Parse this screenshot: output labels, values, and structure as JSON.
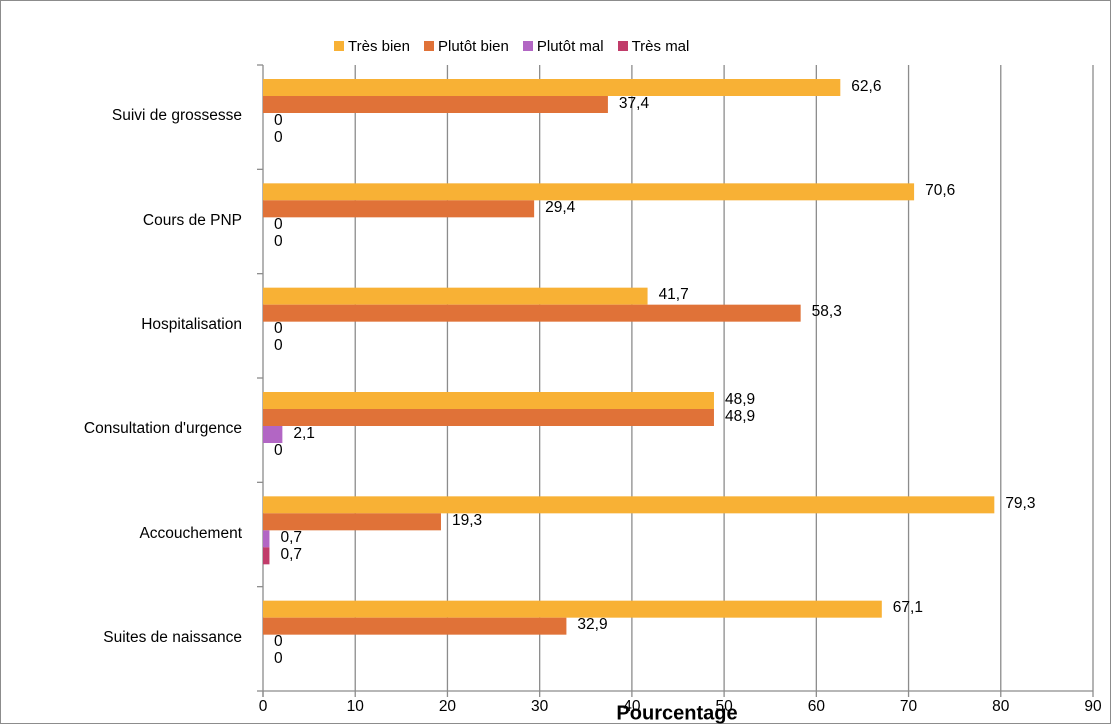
{
  "chart_data": {
    "type": "bar",
    "orientation": "horizontal",
    "categories": [
      "Suivi de grossesse",
      "Cours de PNP",
      "Hospitalisation",
      "Consultation d'urgence",
      "Accouchement",
      "Suites de naissance"
    ],
    "series": [
      {
        "name": "Très bien",
        "color": "#F8B135",
        "values": [
          62.6,
          70.6,
          41.7,
          48.9,
          79.3,
          67.1
        ],
        "labels": [
          "62,6",
          "70,6",
          "41,7",
          "48,9",
          "79,3",
          "67,1"
        ]
      },
      {
        "name": "Plutôt bien",
        "color": "#E07238",
        "values": [
          37.4,
          29.4,
          58.3,
          48.9,
          19.3,
          32.9
        ],
        "labels": [
          "37,4",
          "29,4",
          "58,3",
          "48,9",
          "19,3",
          "32,9"
        ]
      },
      {
        "name": "Plutôt mal",
        "color": "#B266C4",
        "values": [
          0,
          0,
          0,
          2.1,
          0.7,
          0
        ],
        "labels": [
          "0",
          "0",
          "0",
          "2,1",
          "0,7",
          "0"
        ]
      },
      {
        "name": "Très mal",
        "color": "#C13C6A",
        "values": [
          0,
          0,
          0,
          0,
          0.7,
          0
        ],
        "labels": [
          "0",
          "0",
          "0",
          "0",
          "0,7",
          "0"
        ]
      }
    ],
    "xlabel": "Pourcentage",
    "ylabel": "",
    "xlim": [
      0,
      90
    ],
    "xticks": [
      0,
      10,
      20,
      30,
      40,
      50,
      60,
      70,
      80,
      90
    ],
    "grid": "vertical",
    "legend": "top"
  }
}
